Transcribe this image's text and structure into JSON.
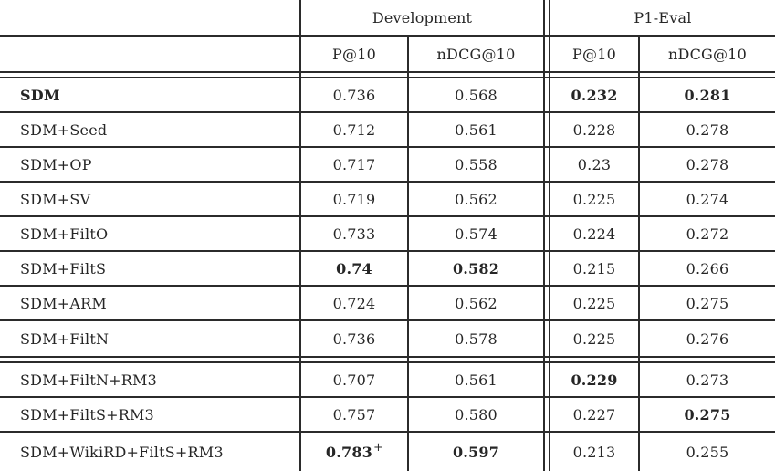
{
  "table": {
    "groups": [
      {
        "label": "Development"
      },
      {
        "label": "P1-Eval"
      }
    ],
    "subheaders": [
      "P@10",
      "nDCG@10",
      "P@10",
      "nDCG@10"
    ],
    "rows": [
      {
        "label": "SDM",
        "label_bold": true,
        "cells": [
          {
            "v": "0.736"
          },
          {
            "v": "0.568"
          },
          {
            "v": "0.232",
            "bold": true
          },
          {
            "v": "0.281",
            "bold": true
          }
        ]
      },
      {
        "label": "SDM+Seed",
        "cells": [
          {
            "v": "0.712"
          },
          {
            "v": "0.561"
          },
          {
            "v": "0.228"
          },
          {
            "v": "0.278"
          }
        ]
      },
      {
        "label": "SDM+OP",
        "cells": [
          {
            "v": "0.717"
          },
          {
            "v": "0.558"
          },
          {
            "v": "0.23"
          },
          {
            "v": "0.278"
          }
        ]
      },
      {
        "label": "SDM+SV",
        "cells": [
          {
            "v": "0.719"
          },
          {
            "v": "0.562"
          },
          {
            "v": "0.225"
          },
          {
            "v": "0.274"
          }
        ]
      },
      {
        "label": "SDM+FiltO",
        "cells": [
          {
            "v": "0.733"
          },
          {
            "v": "0.574"
          },
          {
            "v": "0.224"
          },
          {
            "v": "0.272"
          }
        ]
      },
      {
        "label": "SDM+FiltS",
        "cells": [
          {
            "v": "0.74",
            "bold": true
          },
          {
            "v": "0.582",
            "bold": true
          },
          {
            "v": "0.215"
          },
          {
            "v": "0.266"
          }
        ]
      },
      {
        "label": "SDM+ARM",
        "cells": [
          {
            "v": "0.724"
          },
          {
            "v": "0.562"
          },
          {
            "v": "0.225"
          },
          {
            "v": "0.275"
          }
        ]
      },
      {
        "label": "SDM+FiltN",
        "cells": [
          {
            "v": "0.736"
          },
          {
            "v": "0.578"
          },
          {
            "v": "0.225"
          },
          {
            "v": "0.276"
          }
        ]
      },
      {
        "label": "SDM+FiltN+RM3",
        "cells": [
          {
            "v": "0.707"
          },
          {
            "v": "0.561"
          },
          {
            "v": "0.229",
            "bold": true
          },
          {
            "v": "0.273"
          }
        ]
      },
      {
        "label": "SDM+FiltS+RM3",
        "cells": [
          {
            "v": "0.757"
          },
          {
            "v": "0.580"
          },
          {
            "v": "0.227"
          },
          {
            "v": "0.275",
            "bold": true
          }
        ]
      },
      {
        "label": "SDM+WikiRD+FiltS+RM3",
        "cells": [
          {
            "v": "0.783",
            "sup": "+",
            "bold": true
          },
          {
            "v": "0.597",
            "bold": true
          },
          {
            "v": "0.213"
          },
          {
            "v": "0.255"
          }
        ]
      }
    ]
  }
}
